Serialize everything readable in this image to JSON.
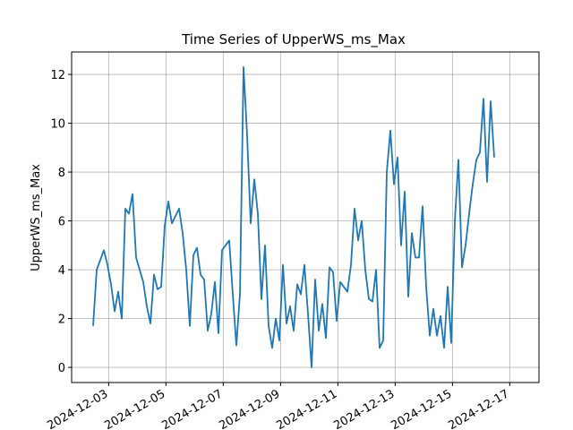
{
  "chart_data": {
    "type": "line",
    "title": "Time Series of UpperWS_ms_Max",
    "ylabel": "UpperWS_ms_Max",
    "color": "#1f77b4",
    "grid": true,
    "x": [
      "2024-12-02T11:00",
      "2024-12-02T14:00",
      "2024-12-02T17:00",
      "2024-12-02T20:00",
      "2024-12-02T23:00",
      "2024-12-03T02:00",
      "2024-12-03T05:00",
      "2024-12-03T08:00",
      "2024-12-03T11:00",
      "2024-12-03T14:00",
      "2024-12-03T17:00",
      "2024-12-03T20:00",
      "2024-12-03T23:00",
      "2024-12-04T02:00",
      "2024-12-04T05:00",
      "2024-12-04T08:00",
      "2024-12-04T11:00",
      "2024-12-04T14:00",
      "2024-12-04T17:00",
      "2024-12-04T20:00",
      "2024-12-04T23:00",
      "2024-12-05T02:00",
      "2024-12-05T05:00",
      "2024-12-05T08:00",
      "2024-12-05T11:00",
      "2024-12-05T14:00",
      "2024-12-05T17:00",
      "2024-12-05T20:00",
      "2024-12-05T23:00",
      "2024-12-06T02:00",
      "2024-12-06T05:00",
      "2024-12-06T08:00",
      "2024-12-06T11:00",
      "2024-12-06T14:00",
      "2024-12-06T17:00",
      "2024-12-06T20:00",
      "2024-12-06T23:00",
      "2024-12-07T02:00",
      "2024-12-07T05:00",
      "2024-12-07T08:00",
      "2024-12-07T11:00",
      "2024-12-07T14:00",
      "2024-12-07T17:00",
      "2024-12-07T20:00",
      "2024-12-07T23:00",
      "2024-12-08T02:00",
      "2024-12-08T05:00",
      "2024-12-08T08:00",
      "2024-12-08T11:00",
      "2024-12-08T14:00",
      "2024-12-08T17:00",
      "2024-12-08T20:00",
      "2024-12-08T23:00",
      "2024-12-09T02:00",
      "2024-12-09T05:00",
      "2024-12-09T08:00",
      "2024-12-09T11:00",
      "2024-12-09T14:00",
      "2024-12-09T17:00",
      "2024-12-09T20:00",
      "2024-12-09T23:00",
      "2024-12-10T02:00",
      "2024-12-10T05:00",
      "2024-12-10T08:00",
      "2024-12-10T11:00",
      "2024-12-10T14:00",
      "2024-12-10T17:00",
      "2024-12-10T20:00",
      "2024-12-10T23:00",
      "2024-12-11T02:00",
      "2024-12-11T05:00",
      "2024-12-11T08:00",
      "2024-12-11T11:00",
      "2024-12-11T14:00",
      "2024-12-11T17:00",
      "2024-12-11T20:00",
      "2024-12-11T23:00",
      "2024-12-12T02:00",
      "2024-12-12T05:00",
      "2024-12-12T08:00",
      "2024-12-12T11:00",
      "2024-12-12T14:00",
      "2024-12-12T17:00",
      "2024-12-12T20:00",
      "2024-12-12T23:00",
      "2024-12-13T02:00",
      "2024-12-13T05:00",
      "2024-12-13T08:00",
      "2024-12-13T11:00",
      "2024-12-13T14:00",
      "2024-12-13T17:00",
      "2024-12-13T20:00",
      "2024-12-13T23:00",
      "2024-12-14T02:00",
      "2024-12-14T05:00",
      "2024-12-14T08:00",
      "2024-12-14T11:00",
      "2024-12-14T14:00",
      "2024-12-14T17:00",
      "2024-12-14T20:00",
      "2024-12-14T23:00",
      "2024-12-15T02:00",
      "2024-12-15T05:00",
      "2024-12-15T08:00",
      "2024-12-15T11:00",
      "2024-12-15T14:00",
      "2024-12-15T17:00",
      "2024-12-15T20:00",
      "2024-12-15T23:00",
      "2024-12-16T02:00",
      "2024-12-16T05:00",
      "2024-12-16T08:00",
      "2024-12-16T11:00"
    ],
    "values": [
      1.7,
      4.0,
      4.4,
      4.8,
      4.2,
      3.4,
      2.3,
      3.1,
      2.0,
      6.5,
      6.3,
      7.1,
      4.5,
      4.0,
      3.5,
      2.5,
      1.8,
      3.8,
      3.2,
      3.3,
      5.8,
      6.8,
      5.9,
      6.2,
      6.5,
      5.5,
      4.0,
      1.7,
      4.6,
      4.9,
      3.8,
      3.6,
      1.5,
      2.2,
      3.5,
      1.4,
      4.8,
      5.0,
      5.2,
      3.0,
      0.9,
      3.0,
      12.3,
      9.5,
      5.9,
      7.7,
      6.3,
      2.8,
      5.0,
      1.7,
      0.8,
      2.0,
      1.1,
      4.2,
      1.8,
      2.5,
      1.5,
      3.4,
      3.0,
      4.2,
      2.2,
      0.0,
      3.6,
      1.5,
      2.6,
      1.2,
      4.1,
      3.9,
      1.9,
      3.5,
      3.3,
      3.1,
      4.2,
      6.5,
      5.2,
      6.0,
      4.0,
      2.8,
      2.7,
      4.0,
      0.8,
      1.1,
      8.0,
      9.7,
      7.5,
      8.6,
      5.0,
      7.2,
      2.9,
      5.5,
      4.5,
      4.5,
      6.6,
      3.3,
      1.3,
      2.4,
      1.3,
      2.1,
      0.8,
      3.3,
      1.0,
      6.0,
      8.5,
      4.1,
      5.0,
      6.3,
      7.5,
      8.5,
      8.8,
      11.0,
      7.6,
      10.9,
      8.6
    ],
    "xlim": [
      "2024-12-01T17:00",
      "2024-12-18T00:30"
    ],
    "xticks": [
      "2024-12-03",
      "2024-12-05",
      "2024-12-07",
      "2024-12-09",
      "2024-12-11",
      "2024-12-13",
      "2024-12-15",
      "2024-12-17"
    ],
    "ylim": [
      -0.62,
      12.92
    ],
    "yticks": [
      0,
      2,
      4,
      6,
      8,
      10,
      12
    ]
  }
}
